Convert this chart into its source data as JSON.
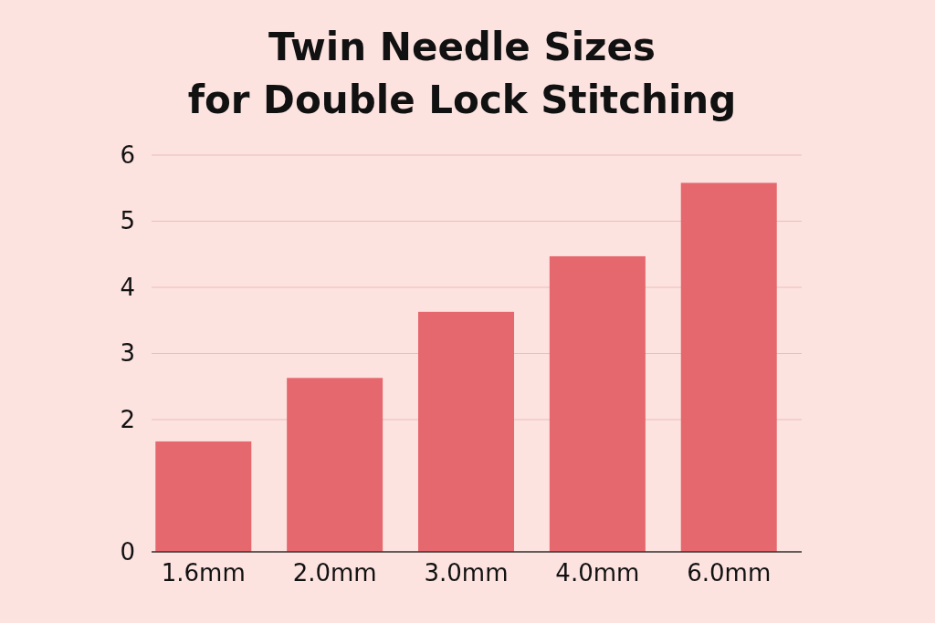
{
  "chart_data": {
    "type": "bar",
    "title": "Twin Needle Sizes\nfor Double Lock Stitching",
    "categories": [
      "1.6mm",
      "2.0mm",
      "3.0mm",
      "4.0mm",
      "6.0mm"
    ],
    "values": [
      1.67,
      2.63,
      3.63,
      4.47,
      5.58
    ],
    "color": "#e5686e",
    "ylim": [
      0,
      6
    ],
    "yticks": [
      0,
      2,
      3,
      4,
      5,
      6
    ],
    "grid": "y"
  }
}
